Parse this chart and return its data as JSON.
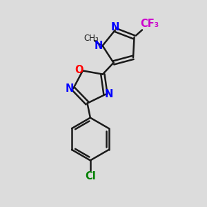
{
  "background_color": "#dcdcdc",
  "bond_color": "#1a1a1a",
  "bond_width": 1.8,
  "n_color": "#0000ff",
  "o_color": "#ff0000",
  "f_color": "#cc00cc",
  "cl_color": "#008000",
  "figsize": [
    3.0,
    3.0
  ],
  "dpi": 100,
  "xlim": [
    0,
    10
  ],
  "ylim": [
    0,
    10
  ]
}
